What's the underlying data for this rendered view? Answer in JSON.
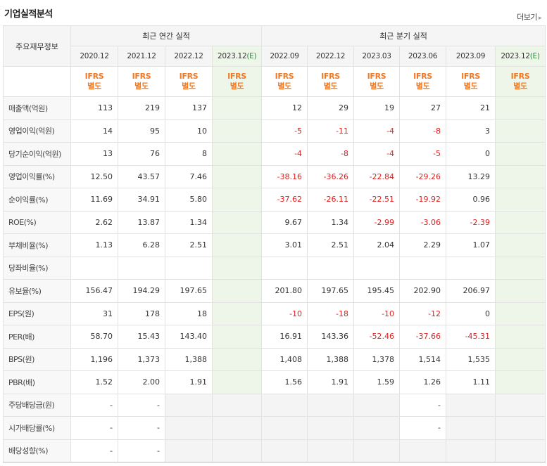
{
  "section_title": "기업실적분석",
  "more_label": "더보기",
  "more_arrow": "▸",
  "corner_label": "주요재무정보",
  "group_headers": {
    "annual": "최근 연간 실적",
    "quarterly": "최근 분기 실적"
  },
  "periods": [
    {
      "label": "2020.12",
      "est": false
    },
    {
      "label": "2021.12",
      "est": false
    },
    {
      "label": "2022.12",
      "est": false
    },
    {
      "label": "2023.12",
      "est_mark": "(E)",
      "est": true
    },
    {
      "label": "2022.09",
      "est": false
    },
    {
      "label": "2022.12",
      "est": false
    },
    {
      "label": "2023.03",
      "est": false
    },
    {
      "label": "2023.06",
      "est": false
    },
    {
      "label": "2023.09",
      "est": false
    },
    {
      "label": "2023.12",
      "est_mark": "(E)",
      "est": true
    }
  ],
  "ifrs": {
    "line1": "IFRS",
    "line2": "별도"
  },
  "rows": [
    {
      "label": "매출액(억원)",
      "values": [
        "113",
        "219",
        "137",
        "",
        "12",
        "29",
        "19",
        "27",
        "21",
        ""
      ]
    },
    {
      "label": "영업이익(억원)",
      "values": [
        "14",
        "95",
        "10",
        "",
        "-5",
        "-11",
        "-4",
        "-8",
        "3",
        ""
      ]
    },
    {
      "label": "당기순이익(억원)",
      "values": [
        "13",
        "76",
        "8",
        "",
        "-4",
        "-8",
        "-4",
        "-5",
        "0",
        ""
      ]
    },
    {
      "label": "영업이익률(%)",
      "values": [
        "12.50",
        "43.57",
        "7.46",
        "",
        "-38.16",
        "-36.26",
        "-22.84",
        "-29.26",
        "13.29",
        ""
      ],
      "group_start": true
    },
    {
      "label": "순이익률(%)",
      "values": [
        "11.69",
        "34.91",
        "5.80",
        "",
        "-37.62",
        "-26.11",
        "-22.51",
        "-19.92",
        "0.96",
        ""
      ]
    },
    {
      "label": "ROE(%)",
      "values": [
        "2.62",
        "13.87",
        "1.34",
        "",
        "9.67",
        "1.34",
        "-2.99",
        "-3.06",
        "-2.39",
        ""
      ]
    },
    {
      "label": "부채비율(%)",
      "values": [
        "1.13",
        "6.28",
        "2.51",
        "",
        "3.01",
        "2.51",
        "2.04",
        "2.29",
        "1.07",
        ""
      ],
      "group_start": true
    },
    {
      "label": "당좌비율(%)",
      "values": [
        "",
        "",
        "",
        "",
        "",
        "",
        "",
        "",
        "",
        ""
      ]
    },
    {
      "label": "유보율(%)",
      "values": [
        "156.47",
        "194.29",
        "197.65",
        "",
        "201.80",
        "197.65",
        "195.45",
        "202.90",
        "206.97",
        ""
      ]
    },
    {
      "label": "EPS(원)",
      "values": [
        "31",
        "178",
        "18",
        "",
        "-10",
        "-18",
        "-10",
        "-12",
        "0",
        ""
      ],
      "group_start": true
    },
    {
      "label": "PER(배)",
      "values": [
        "58.70",
        "15.43",
        "143.40",
        "",
        "16.91",
        "143.36",
        "-52.46",
        "-37.66",
        "-45.31",
        ""
      ]
    },
    {
      "label": "BPS(원)",
      "values": [
        "1,196",
        "1,373",
        "1,388",
        "",
        "1,408",
        "1,388",
        "1,378",
        "1,514",
        "1,535",
        ""
      ]
    },
    {
      "label": "PBR(배)",
      "values": [
        "1.52",
        "2.00",
        "1.91",
        "",
        "1.56",
        "1.91",
        "1.59",
        "1.26",
        "1.11",
        ""
      ]
    },
    {
      "label": "주당배당금(원)",
      "values": [
        "-",
        "-",
        "",
        "",
        "",
        "",
        "",
        "-",
        "",
        ""
      ],
      "group_start": true,
      "gray_from": 2,
      "gray_skip": [
        7
      ]
    },
    {
      "label": "시가배당률(%)",
      "values": [
        "-",
        "-",
        "",
        "",
        "",
        "",
        "",
        "-",
        "",
        ""
      ],
      "gray_from": 2,
      "gray_skip": [
        7
      ]
    },
    {
      "label": "배당성향(%)",
      "values": [
        "-",
        "-",
        "",
        "",
        "",
        "",
        "",
        "",
        "",
        ""
      ],
      "gray_from": 2,
      "gray_skip": [],
      "last": true
    }
  ],
  "colors": {
    "negative": "#e01f1f",
    "ifrs": "#f47920",
    "estimate_bg": "#eef6ea",
    "estimate_mark": "#2c8c3c"
  }
}
